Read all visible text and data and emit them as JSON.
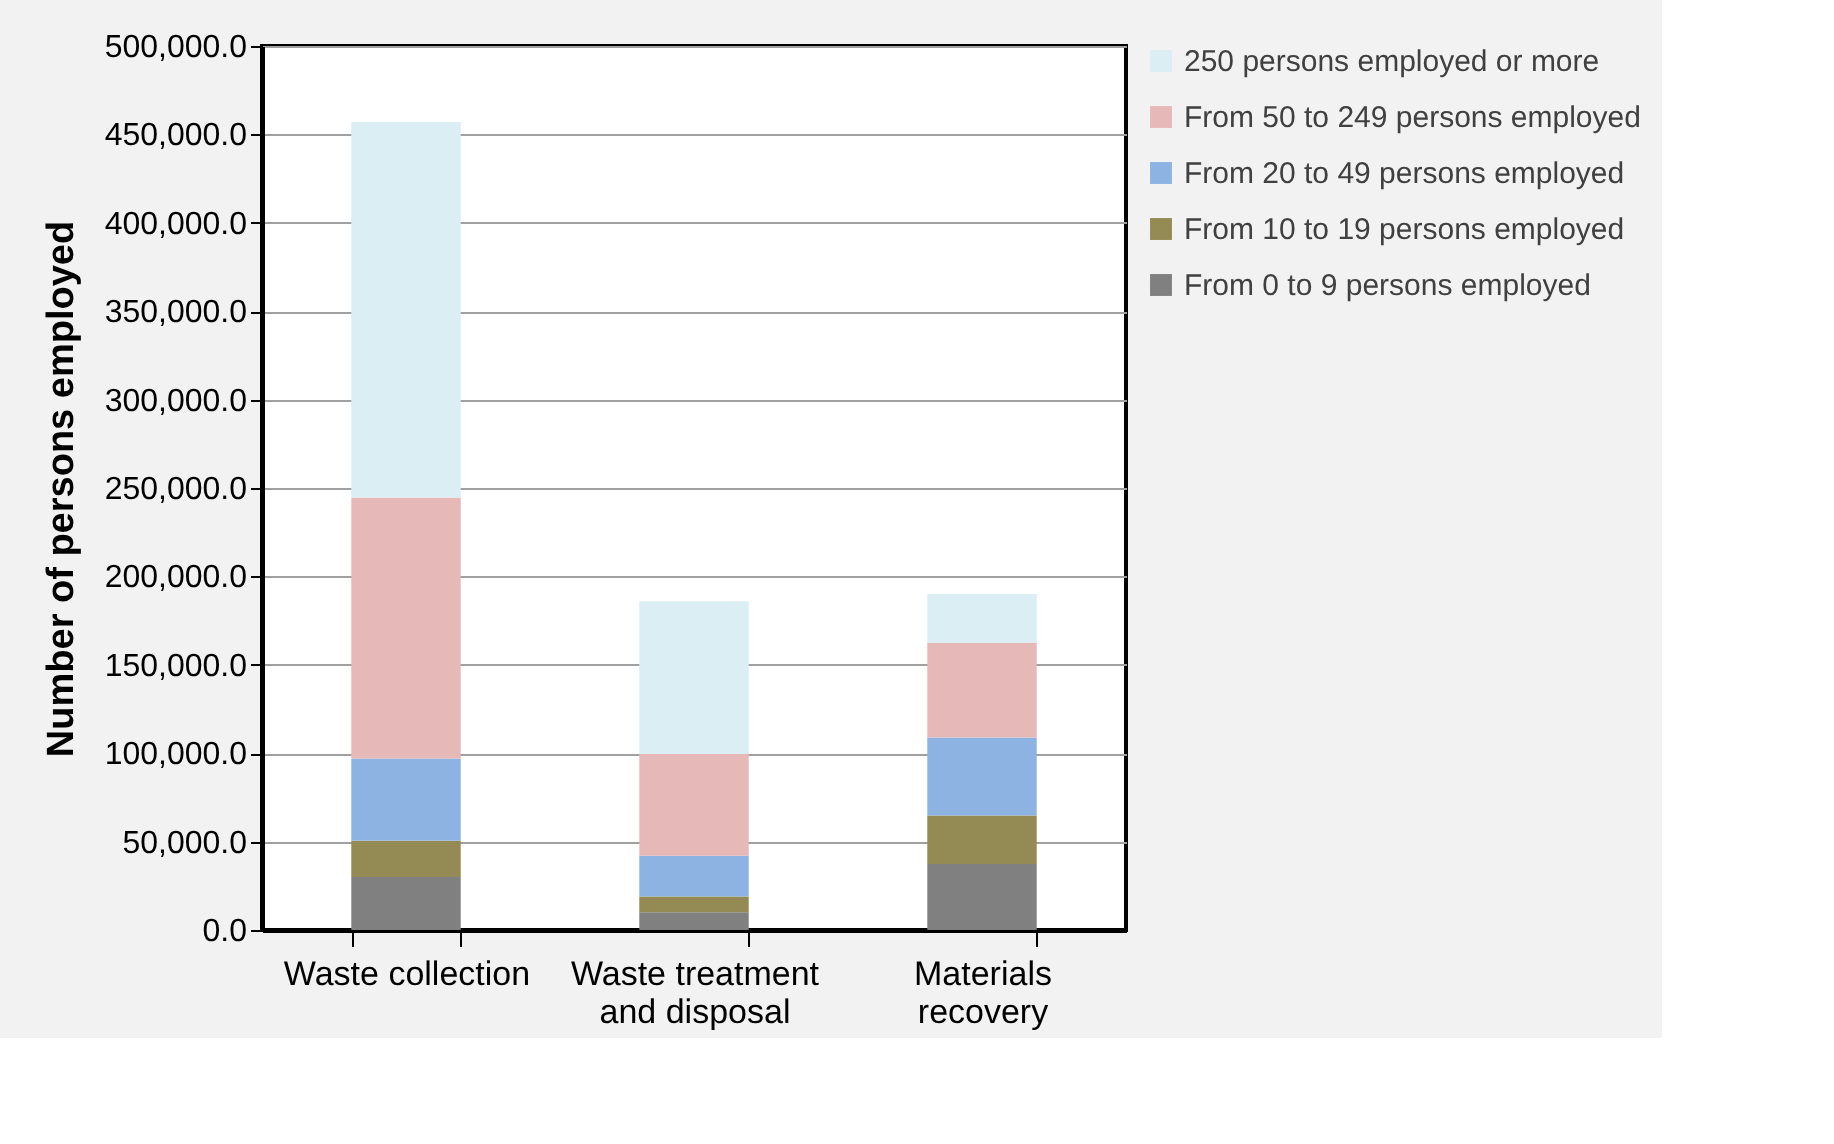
{
  "chart_data": {
    "type": "bar",
    "stacked": true,
    "ylabel": "Number of persons employed",
    "categories": [
      "Waste collection",
      "Waste treatment and disposal",
      "Materials recovery"
    ],
    "series": [
      {
        "name": "From 0 to 9 persons employed",
        "color": "#808080",
        "values": [
          30000,
          10000,
          37300
        ]
      },
      {
        "name": "From 10 to 19 persons employed",
        "color": "#948a54",
        "values": [
          20500,
          9000,
          27500
        ]
      },
      {
        "name": "From 20 to 49 persons employed",
        "color": "#8db3e2",
        "values": [
          46500,
          23000,
          44100
        ]
      },
      {
        "name": "From 50 to 249 persons employed",
        "color": "#e6b9b8",
        "values": [
          147600,
          57500,
          53600
        ]
      },
      {
        "name": "250 persons employed or more",
        "color": "#dbeef4",
        "values": [
          212400,
          86500,
          27500
        ]
      }
    ],
    "ylim": [
      0,
      500000
    ],
    "yticks": [
      {
        "value": 0,
        "label": "0.0"
      },
      {
        "value": 50000,
        "label": "50,000.0"
      },
      {
        "value": 100000,
        "label": "100,000.0"
      },
      {
        "value": 150000,
        "label": "150,000.0"
      },
      {
        "value": 200000,
        "label": "200,000.0"
      },
      {
        "value": 250000,
        "label": "250,000.0"
      },
      {
        "value": 300000,
        "label": "300,000.0"
      },
      {
        "value": 350000,
        "label": "350,000.0"
      },
      {
        "value": 400000,
        "label": "400,000.0"
      },
      {
        "value": 450000,
        "label": "450,000.0"
      },
      {
        "value": 500000,
        "label": "500,000.0"
      }
    ],
    "grid": "y",
    "legend": "right"
  }
}
